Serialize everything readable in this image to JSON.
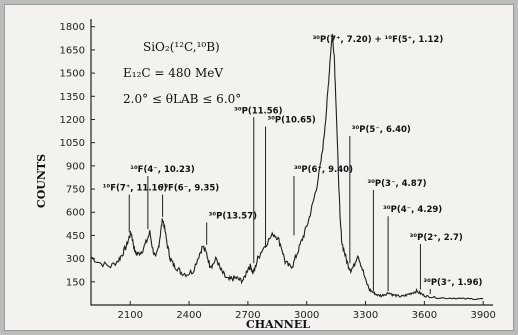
{
  "chart_data": {
    "type": "line",
    "xlabel": "CHANNEL",
    "ylabel": "COUNTS",
    "xlim": [
      1900,
      3950
    ],
    "ylim": [
      0,
      1850
    ],
    "xticks": [
      2100,
      2400,
      2700,
      3000,
      3300,
      3600,
      3900
    ],
    "yticks": [
      150,
      300,
      450,
      600,
      750,
      900,
      1050,
      1200,
      1350,
      1500,
      1650,
      1800
    ],
    "info_lines": [
      "SiO₂(¹²C,¹⁰B)",
      "E₁₂C = 480 MeV",
      "2.0° ≤ θLAB ≤ 6.0°"
    ],
    "series": [
      {
        "x": [
          1900,
          1950,
          2000,
          2040,
          2060,
          2080,
          2095,
          2105,
          2115,
          2125,
          2140,
          2160,
          2180,
          2200,
          2215,
          2230,
          2245,
          2255,
          2265,
          2275,
          2290,
          2305,
          2320,
          2340,
          2360,
          2390,
          2420,
          2450,
          2470,
          2490,
          2505,
          2520,
          2540,
          2560,
          2580,
          2600,
          2620,
          2640,
          2660,
          2680,
          2700,
          2715,
          2725,
          2735,
          2750,
          2770,
          2800,
          2830,
          2850,
          2870,
          2890,
          2910,
          2930,
          2950,
          2970,
          2990,
          3010,
          3030,
          3050,
          3070,
          3085,
          3100,
          3110,
          3120,
          3130,
          3140,
          3150,
          3160,
          3170,
          3180,
          3195,
          3210,
          3225,
          3240,
          3260,
          3280,
          3300,
          3320,
          3340,
          3360,
          3380,
          3400,
          3420,
          3440,
          3460,
          3480,
          3500,
          3520,
          3540,
          3560,
          3580,
          3600,
          3620,
          3650,
          3700,
          3750,
          3800,
          3850,
          3900
        ],
        "y": [
          310,
          270,
          250,
          290,
          330,
          380,
          440,
          470,
          400,
          340,
          330,
          350,
          400,
          470,
          360,
          300,
          380,
          470,
          560,
          500,
          380,
          300,
          260,
          240,
          210,
          200,
          220,
          320,
          380,
          330,
          260,
          260,
          300,
          230,
          190,
          160,
          170,
          175,
          160,
          165,
          240,
          250,
          210,
          230,
          300,
          350,
          410,
          460,
          440,
          380,
          280,
          250,
          260,
          330,
          400,
          470,
          550,
          650,
          760,
          900,
          1050,
          1250,
          1420,
          1600,
          1750,
          1620,
          1300,
          900,
          560,
          400,
          330,
          260,
          230,
          250,
          330,
          250,
          160,
          100,
          80,
          65,
          60,
          70,
          80,
          65,
          60,
          55,
          60,
          70,
          80,
          90,
          75,
          60,
          55,
          50,
          45,
          45,
          40,
          40,
          40
        ]
      }
    ],
    "annotations": [
      {
        "text": "¹⁰F(7⁺, 11.16)",
        "x": 1960,
        "y_text": 740,
        "x_line": 2095,
        "y_bottom": 470
      },
      {
        "text": "¹⁰F(4⁻, 10.23)",
        "x": 2100,
        "y_text": 860,
        "x_line": 2190,
        "y_bottom": 490
      },
      {
        "text": "¹⁰F(6⁻, 9.35)",
        "x": 2255,
        "y_text": 740,
        "x_line": 2265,
        "y_bottom": 570
      },
      {
        "text": "³⁰P(13.57)",
        "x": 2500,
        "y_text": 560,
        "x_line": 2490,
        "y_bottom": 390
      },
      {
        "text": "³⁰P(11.56)",
        "x": 2630,
        "y_text": 1240,
        "x_line": 2730,
        "y_bottom": 270
      },
      {
        "text": "³⁰P(10.65)",
        "x": 2800,
        "y_text": 1180,
        "x_line": 2790,
        "y_bottom": 370
      },
      {
        "text": "³⁰P(6⁺, 9.40)",
        "x": 2935,
        "y_text": 860,
        "x_line": 2935,
        "y_bottom": 450
      },
      {
        "text": "³⁰P(7⁺, 7.20) + ¹⁰F(5⁺, 1.12)",
        "x": 3030,
        "y_text": 1700,
        "x_line": 3140,
        "y_bottom": 1770
      },
      {
        "text": "³⁰P(5⁻, 6.40)",
        "x": 3230,
        "y_text": 1120,
        "x_line": 3220,
        "y_bottom": 270
      },
      {
        "text": "³⁰P(3⁻, 4.87)",
        "x": 3310,
        "y_text": 770,
        "x_line": 3340,
        "y_bottom": 90
      },
      {
        "text": "³⁰P(4⁻, 4.29)",
        "x": 3390,
        "y_text": 600,
        "x_line": 3415,
        "y_bottom": 90
      },
      {
        "text": "³⁰P(2⁺, 2.7)",
        "x": 3525,
        "y_text": 420,
        "x_line": 3580,
        "y_bottom": 100
      },
      {
        "text": "³⁰P(3⁺, 1.96)",
        "x": 3595,
        "y_text": 130,
        "x_line": 3630,
        "y_bottom": 70
      }
    ]
  }
}
